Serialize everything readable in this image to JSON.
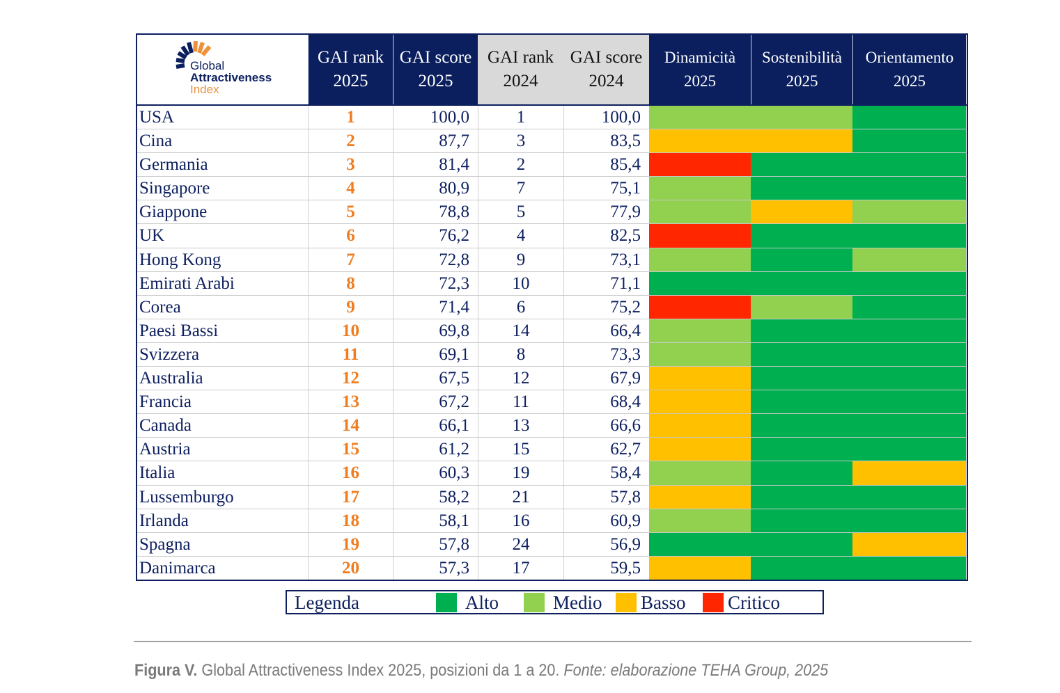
{
  "logo": {
    "line1": "Global",
    "line2": "Attractiveness",
    "line3": "Index"
  },
  "headers": [
    {
      "l1": "GAI rank",
      "l2": "2025"
    },
    {
      "l1": "GAI score",
      "l2": "2025"
    },
    {
      "l1": "GAI rank",
      "l2": "2024"
    },
    {
      "l1": "GAI score",
      "l2": "2024"
    },
    {
      "l1": "Dinamicità",
      "l2": "2025"
    },
    {
      "l1": "Sostenibilità",
      "l2": "2025"
    },
    {
      "l1": "Orientamento",
      "l2": "2025"
    }
  ],
  "colors": {
    "Alto": "#00b050",
    "Medio": "#92d050",
    "Basso": "#ffc000",
    "Critico": "#ff2600",
    "navy": "#0b1f5e",
    "rank_orange": "#f07c1e"
  },
  "rows": [
    {
      "country": "USA",
      "rank2025": "1",
      "score2025": "100,0",
      "rank2024": "1",
      "score2024": "100,0",
      "dinamicita": "Medio",
      "sostenibilita": "Medio",
      "orientamento": "Alto"
    },
    {
      "country": "Cina",
      "rank2025": "2",
      "score2025": "87,7",
      "rank2024": "3",
      "score2024": "83,5",
      "dinamicita": "Basso",
      "sostenibilita": "Basso",
      "orientamento": "Alto"
    },
    {
      "country": "Germania",
      "rank2025": "3",
      "score2025": "81,4",
      "rank2024": "2",
      "score2024": "85,4",
      "dinamicita": "Critico",
      "sostenibilita": "Alto",
      "orientamento": "Alto"
    },
    {
      "country": "Singapore",
      "rank2025": "4",
      "score2025": "80,9",
      "rank2024": "7",
      "score2024": "75,1",
      "dinamicita": "Medio",
      "sostenibilita": "Alto",
      "orientamento": "Alto"
    },
    {
      "country": "Giappone",
      "rank2025": "5",
      "score2025": "78,8",
      "rank2024": "5",
      "score2024": "77,9",
      "dinamicita": "Medio",
      "sostenibilita": "Basso",
      "orientamento": "Medio"
    },
    {
      "country": "UK",
      "rank2025": "6",
      "score2025": "76,2",
      "rank2024": "4",
      "score2024": "82,5",
      "dinamicita": "Critico",
      "sostenibilita": "Alto",
      "orientamento": "Alto"
    },
    {
      "country": "Hong Kong",
      "rank2025": "7",
      "score2025": "72,8",
      "rank2024": "9",
      "score2024": "73,1",
      "dinamicita": "Medio",
      "sostenibilita": "Alto",
      "orientamento": "Medio"
    },
    {
      "country": "Emirati Arabi",
      "rank2025": "8",
      "score2025": "72,3",
      "rank2024": "10",
      "score2024": "71,1",
      "dinamicita": "Alto",
      "sostenibilita": "Alto",
      "orientamento": "Alto"
    },
    {
      "country": "Corea",
      "rank2025": "9",
      "score2025": "71,4",
      "rank2024": "6",
      "score2024": "75,2",
      "dinamicita": "Critico",
      "sostenibilita": "Medio",
      "orientamento": "Alto"
    },
    {
      "country": "Paesi Bassi",
      "rank2025": "10",
      "score2025": "69,8",
      "rank2024": "14",
      "score2024": "66,4",
      "dinamicita": "Medio",
      "sostenibilita": "Alto",
      "orientamento": "Alto"
    },
    {
      "country": "Svizzera",
      "rank2025": "11",
      "score2025": "69,1",
      "rank2024": "8",
      "score2024": "73,3",
      "dinamicita": "Medio",
      "sostenibilita": "Alto",
      "orientamento": "Alto"
    },
    {
      "country": "Australia",
      "rank2025": "12",
      "score2025": "67,5",
      "rank2024": "12",
      "score2024": "67,9",
      "dinamicita": "Basso",
      "sostenibilita": "Alto",
      "orientamento": "Alto"
    },
    {
      "country": "Francia",
      "rank2025": "13",
      "score2025": "67,2",
      "rank2024": "11",
      "score2024": "68,4",
      "dinamicita": "Basso",
      "sostenibilita": "Alto",
      "orientamento": "Alto"
    },
    {
      "country": "Canada",
      "rank2025": "14",
      "score2025": "66,1",
      "rank2024": "13",
      "score2024": "66,6",
      "dinamicita": "Basso",
      "sostenibilita": "Alto",
      "orientamento": "Alto"
    },
    {
      "country": "Austria",
      "rank2025": "15",
      "score2025": "61,2",
      "rank2024": "15",
      "score2024": "62,7",
      "dinamicita": "Basso",
      "sostenibilita": "Alto",
      "orientamento": "Alto"
    },
    {
      "country": "Italia",
      "rank2025": "16",
      "score2025": "60,3",
      "rank2024": "19",
      "score2024": "58,4",
      "dinamicita": "Medio",
      "sostenibilita": "Alto",
      "orientamento": "Basso"
    },
    {
      "country": "Lussemburgo",
      "rank2025": "17",
      "score2025": "58,2",
      "rank2024": "21",
      "score2024": "57,8",
      "dinamicita": "Basso",
      "sostenibilita": "Alto",
      "orientamento": "Alto"
    },
    {
      "country": "Irlanda",
      "rank2025": "18",
      "score2025": "58,1",
      "rank2024": "16",
      "score2024": "60,9",
      "dinamicita": "Medio",
      "sostenibilita": "Alto",
      "orientamento": "Alto"
    },
    {
      "country": "Spagna",
      "rank2025": "19",
      "score2025": "57,8",
      "rank2024": "24",
      "score2024": "56,9",
      "dinamicita": "Alto",
      "sostenibilita": "Alto",
      "orientamento": "Basso"
    },
    {
      "country": "Danimarca",
      "rank2025": "20",
      "score2025": "57,3",
      "rank2024": "17",
      "score2024": "59,5",
      "dinamicita": "Basso",
      "sostenibilita": "Alto",
      "orientamento": "Alto"
    }
  ],
  "legend": {
    "title": "Legenda",
    "items": [
      "Alto",
      "Medio",
      "Basso",
      "Critico"
    ]
  },
  "caption": {
    "label": "Figura V.",
    "text": " Global Attractiveness Index 2025, posizioni da 1 a 20. ",
    "source": "Fonte: elaborazione TEHA Group, 2025"
  }
}
